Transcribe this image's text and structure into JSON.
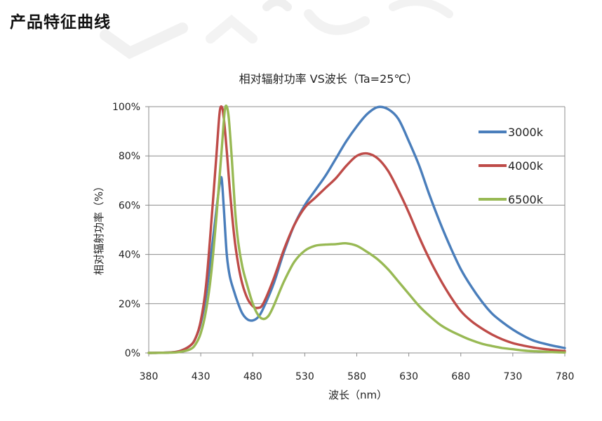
{
  "heading": "产品特征曲线",
  "chart_data": {
    "type": "line",
    "title": "相对辐射功率 VS波长（Ta=25℃）",
    "xlabel": "波长（nm）",
    "ylabel": "相对辐射功率（%）",
    "xlim": [
      380,
      780
    ],
    "ylim": [
      0,
      100
    ],
    "xticks": [
      380,
      430,
      480,
      530,
      580,
      630,
      680,
      730,
      780
    ],
    "yticks": [
      0,
      20,
      40,
      60,
      80,
      100
    ],
    "ytick_labels": [
      "0%",
      "20%",
      "40%",
      "60%",
      "80%",
      "100%"
    ],
    "grid": true,
    "legend_position": "right",
    "series": [
      {
        "name": "3000k",
        "color": "#4a7ebb",
        "points": [
          [
            380,
            0
          ],
          [
            400,
            0.2
          ],
          [
            410,
            0.8
          ],
          [
            420,
            3
          ],
          [
            425,
            6
          ],
          [
            430,
            12
          ],
          [
            435,
            23
          ],
          [
            440,
            40
          ],
          [
            445,
            58
          ],
          [
            448,
            68
          ],
          [
            450,
            71
          ],
          [
            452,
            60
          ],
          [
            455,
            40
          ],
          [
            458,
            31
          ],
          [
            462,
            25
          ],
          [
            466,
            20
          ],
          [
            470,
            16
          ],
          [
            475,
            13.6
          ],
          [
            480,
            13.2
          ],
          [
            485,
            14.5
          ],
          [
            490,
            18
          ],
          [
            500,
            28
          ],
          [
            510,
            41
          ],
          [
            520,
            52
          ],
          [
            530,
            60
          ],
          [
            540,
            66
          ],
          [
            550,
            72
          ],
          [
            560,
            79
          ],
          [
            570,
            86
          ],
          [
            580,
            92
          ],
          [
            590,
            97
          ],
          [
            600,
            99.8
          ],
          [
            610,
            99
          ],
          [
            620,
            95
          ],
          [
            630,
            86
          ],
          [
            640,
            76
          ],
          [
            650,
            64
          ],
          [
            660,
            53
          ],
          [
            670,
            43
          ],
          [
            680,
            34
          ],
          [
            690,
            27
          ],
          [
            700,
            21
          ],
          [
            710,
            16
          ],
          [
            720,
            12.5
          ],
          [
            730,
            9.5
          ],
          [
            740,
            7
          ],
          [
            750,
            5
          ],
          [
            760,
            3.8
          ],
          [
            770,
            2.8
          ],
          [
            780,
            2
          ]
        ]
      },
      {
        "name": "4000k",
        "color": "#be4b48",
        "points": [
          [
            380,
            0
          ],
          [
            400,
            0.2
          ],
          [
            410,
            0.8
          ],
          [
            420,
            3
          ],
          [
            425,
            6
          ],
          [
            430,
            13
          ],
          [
            435,
            27
          ],
          [
            440,
            52
          ],
          [
            445,
            80
          ],
          [
            448,
            97
          ],
          [
            450,
            100
          ],
          [
            452,
            96
          ],
          [
            455,
            82
          ],
          [
            458,
            66
          ],
          [
            462,
            48
          ],
          [
            466,
            36
          ],
          [
            470,
            28
          ],
          [
            475,
            22
          ],
          [
            480,
            19
          ],
          [
            485,
            18.3
          ],
          [
            490,
            20
          ],
          [
            500,
            30
          ],
          [
            510,
            42
          ],
          [
            520,
            52
          ],
          [
            530,
            59
          ],
          [
            540,
            63
          ],
          [
            550,
            67
          ],
          [
            560,
            71
          ],
          [
            570,
            76
          ],
          [
            580,
            80
          ],
          [
            590,
            81
          ],
          [
            600,
            79
          ],
          [
            610,
            74
          ],
          [
            620,
            66
          ],
          [
            630,
            57
          ],
          [
            640,
            47
          ],
          [
            650,
            38
          ],
          [
            660,
            30
          ],
          [
            670,
            23
          ],
          [
            680,
            17
          ],
          [
            690,
            13
          ],
          [
            700,
            10
          ],
          [
            710,
            7.5
          ],
          [
            720,
            5.5
          ],
          [
            730,
            4
          ],
          [
            740,
            3
          ],
          [
            750,
            2.2
          ],
          [
            760,
            1.6
          ],
          [
            770,
            1.1
          ],
          [
            780,
            0.8
          ]
        ]
      },
      {
        "name": "6500k",
        "color": "#98b954",
        "points": [
          [
            380,
            0
          ],
          [
            400,
            0.1
          ],
          [
            410,
            0.4
          ],
          [
            420,
            1.5
          ],
          [
            425,
            3.5
          ],
          [
            430,
            8
          ],
          [
            435,
            17
          ],
          [
            440,
            32
          ],
          [
            445,
            55
          ],
          [
            450,
            82
          ],
          [
            453,
            98
          ],
          [
            455,
            100
          ],
          [
            457,
            95
          ],
          [
            460,
            78
          ],
          [
            463,
            58
          ],
          [
            466,
            45
          ],
          [
            470,
            35
          ],
          [
            475,
            27
          ],
          [
            480,
            20
          ],
          [
            485,
            15.5
          ],
          [
            490,
            13.8
          ],
          [
            495,
            15
          ],
          [
            500,
            19
          ],
          [
            510,
            29
          ],
          [
            520,
            37
          ],
          [
            530,
            41.5
          ],
          [
            540,
            43.5
          ],
          [
            550,
            44
          ],
          [
            560,
            44.2
          ],
          [
            570,
            44.5
          ],
          [
            580,
            43.5
          ],
          [
            590,
            41
          ],
          [
            600,
            38
          ],
          [
            610,
            34
          ],
          [
            620,
            29
          ],
          [
            630,
            24
          ],
          [
            640,
            19
          ],
          [
            650,
            15
          ],
          [
            660,
            11.5
          ],
          [
            670,
            9
          ],
          [
            680,
            7
          ],
          [
            690,
            5.2
          ],
          [
            700,
            3.8
          ],
          [
            710,
            2.8
          ],
          [
            720,
            2
          ],
          [
            730,
            1.5
          ],
          [
            740,
            1
          ],
          [
            750,
            0.7
          ],
          [
            760,
            0.5
          ],
          [
            770,
            0.3
          ],
          [
            780,
            0.2
          ]
        ]
      }
    ]
  }
}
